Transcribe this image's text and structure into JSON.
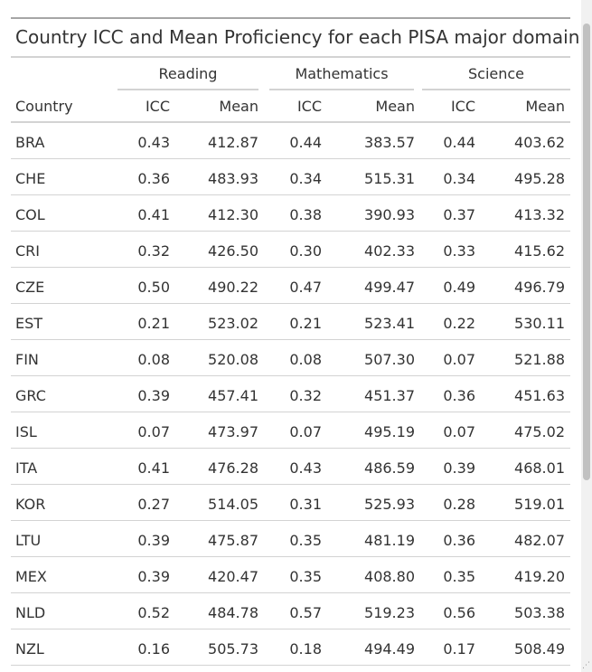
{
  "table": {
    "title": "Country ICC and Mean Proficiency for each PISA major domain",
    "spanners": [
      "Reading",
      "Mathematics",
      "Science"
    ],
    "columns": [
      "Country",
      "ICC",
      "Mean",
      "ICC",
      "Mean",
      "ICC",
      "Mean"
    ],
    "rows": [
      [
        "BRA",
        "0.43",
        "412.87",
        "0.44",
        "383.57",
        "0.44",
        "403.62"
      ],
      [
        "CHE",
        "0.36",
        "483.93",
        "0.34",
        "515.31",
        "0.34",
        "495.28"
      ],
      [
        "COL",
        "0.41",
        "412.30",
        "0.38",
        "390.93",
        "0.37",
        "413.32"
      ],
      [
        "CRI",
        "0.32",
        "426.50",
        "0.30",
        "402.33",
        "0.33",
        "415.62"
      ],
      [
        "CZE",
        "0.50",
        "490.22",
        "0.47",
        "499.47",
        "0.49",
        "496.79"
      ],
      [
        "EST",
        "0.21",
        "523.02",
        "0.21",
        "523.41",
        "0.22",
        "530.11"
      ],
      [
        "FIN",
        "0.08",
        "520.08",
        "0.08",
        "507.30",
        "0.07",
        "521.88"
      ],
      [
        "GRC",
        "0.39",
        "457.41",
        "0.32",
        "451.37",
        "0.36",
        "451.63"
      ],
      [
        "ISL",
        "0.07",
        "473.97",
        "0.07",
        "495.19",
        "0.07",
        "475.02"
      ],
      [
        "ITA",
        "0.41",
        "476.28",
        "0.43",
        "486.59",
        "0.39",
        "468.01"
      ],
      [
        "KOR",
        "0.27",
        "514.05",
        "0.31",
        "525.93",
        "0.28",
        "519.01"
      ],
      [
        "LTU",
        "0.39",
        "475.87",
        "0.35",
        "481.19",
        "0.36",
        "482.07"
      ],
      [
        "MEX",
        "0.39",
        "420.47",
        "0.35",
        "408.80",
        "0.35",
        "419.20"
      ],
      [
        "NLD",
        "0.52",
        "484.78",
        "0.57",
        "519.23",
        "0.56",
        "503.38"
      ],
      [
        "NZL",
        "0.16",
        "505.73",
        "0.18",
        "494.49",
        "0.17",
        "508.49"
      ]
    ]
  }
}
